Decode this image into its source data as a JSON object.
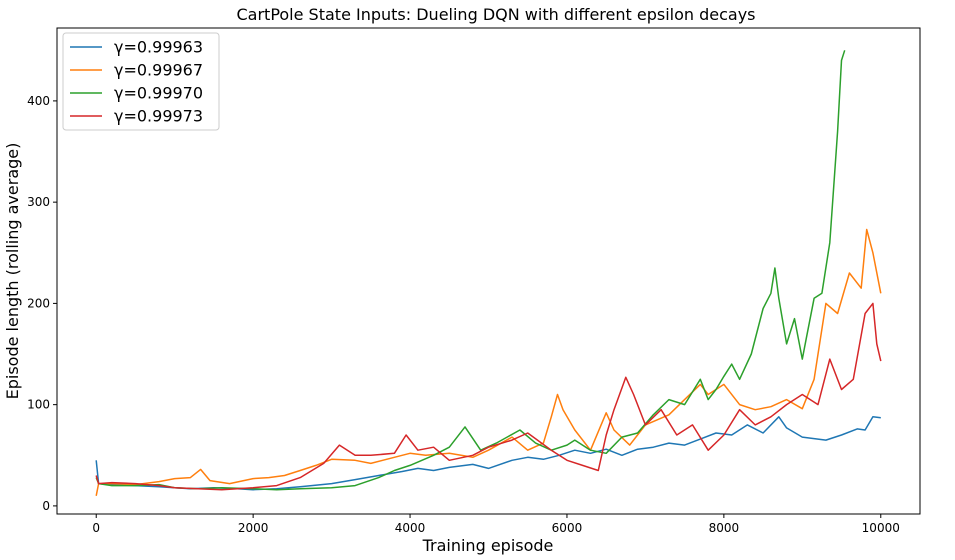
{
  "chart_data": {
    "type": "line",
    "title": "CartPole State Inputs: Dueling DQN with different epsilon decays",
    "xlabel": "Training episode",
    "ylabel": "Episode length (rolling average)",
    "xlim": [
      -500,
      10500
    ],
    "ylim": [
      -8,
      472
    ],
    "xticks": [
      0,
      2000,
      4000,
      6000,
      8000,
      10000
    ],
    "xtick_labels": [
      "0",
      "2000",
      "4000",
      "6000",
      "8000",
      "10000"
    ],
    "yticks": [
      0,
      100,
      200,
      300,
      400
    ],
    "ytick_labels": [
      "0",
      "100",
      "200",
      "300",
      "400"
    ],
    "grid": false,
    "legend_position": "top-left",
    "series": [
      {
        "name": "γ=0.99963",
        "color": "#1f77b4",
        "x": [
          0,
          30,
          200,
          500,
          800,
          1000,
          1200,
          1500,
          1800,
          2000,
          2300,
          2600,
          3000,
          3300,
          3600,
          3900,
          4100,
          4300,
          4500,
          4800,
          5000,
          5300,
          5500,
          5700,
          5900,
          6100,
          6300,
          6500,
          6700,
          6900,
          7100,
          7300,
          7500,
          7700,
          7900,
          8100,
          8300,
          8500,
          8700,
          8800,
          9000,
          9200,
          9300,
          9500,
          9700,
          9800,
          9900,
          10000
        ],
        "y": [
          45,
          22,
          21,
          20,
          19,
          18,
          17,
          18,
          17,
          16,
          17,
          19,
          22,
          26,
          30,
          34,
          37,
          35,
          38,
          41,
          37,
          45,
          48,
          46,
          50,
          55,
          52,
          56,
          50,
          56,
          58,
          62,
          60,
          66,
          72,
          70,
          80,
          72,
          88,
          77,
          68,
          66,
          65,
          70,
          76,
          75,
          88,
          87
        ]
      },
      {
        "name": "γ=0.99967",
        "color": "#ff7f0e",
        "x": [
          0,
          30,
          200,
          500,
          800,
          1000,
          1200,
          1330,
          1450,
          1700,
          2000,
          2200,
          2400,
          2600,
          2800,
          3000,
          3300,
          3500,
          3800,
          4000,
          4200,
          4500,
          4800,
          5000,
          5300,
          5500,
          5700,
          5800,
          5880,
          5950,
          6100,
          6300,
          6500,
          6600,
          6800,
          7000,
          7300,
          7500,
          7700,
          7800,
          8000,
          8200,
          8400,
          8600,
          8800,
          9000,
          9150,
          9300,
          9450,
          9600,
          9750,
          9820,
          9900,
          10000
        ],
        "y": [
          10,
          22,
          22,
          21,
          24,
          27,
          28,
          36,
          25,
          22,
          27,
          28,
          30,
          35,
          40,
          46,
          45,
          42,
          48,
          52,
          50,
          52,
          48,
          55,
          68,
          55,
          62,
          88,
          110,
          95,
          75,
          55,
          92,
          75,
          60,
          80,
          90,
          105,
          120,
          110,
          120,
          100,
          95,
          98,
          105,
          96,
          125,
          200,
          190,
          230,
          215,
          273,
          250,
          210
        ]
      },
      {
        "name": "γ=0.99970",
        "color": "#2ca02c",
        "x": [
          0,
          30,
          200,
          500,
          800,
          1000,
          1300,
          1600,
          2000,
          2300,
          2600,
          3000,
          3300,
          3600,
          3800,
          4000,
          4300,
          4500,
          4700,
          4900,
          5100,
          5400,
          5600,
          5800,
          6000,
          6100,
          6300,
          6500,
          6700,
          6900,
          7100,
          7300,
          7500,
          7700,
          7800,
          7900,
          8000,
          8100,
          8200,
          8350,
          8500,
          8600,
          8650,
          8700,
          8800,
          8900,
          9000,
          9050,
          9150,
          9250,
          9350,
          9450,
          9500,
          9540
        ],
        "y": [
          28,
          22,
          20,
          20,
          21,
          18,
          17,
          18,
          17,
          16,
          17,
          18,
          20,
          28,
          35,
          40,
          50,
          58,
          78,
          55,
          62,
          75,
          62,
          55,
          60,
          65,
          55,
          52,
          68,
          72,
          90,
          105,
          100,
          125,
          105,
          115,
          128,
          140,
          125,
          150,
          195,
          210,
          235,
          205,
          160,
          185,
          145,
          165,
          205,
          210,
          260,
          370,
          440,
          450
        ]
      },
      {
        "name": "γ=0.99973",
        "color": "#d62728",
        "x": [
          0,
          30,
          200,
          500,
          800,
          1000,
          1300,
          1600,
          2000,
          2300,
          2600,
          2900,
          3100,
          3300,
          3500,
          3800,
          3950,
          4100,
          4300,
          4500,
          4800,
          5000,
          5300,
          5500,
          5800,
          6000,
          6200,
          6400,
          6500,
          6600,
          6750,
          6850,
          7000,
          7200,
          7400,
          7600,
          7800,
          8000,
          8200,
          8400,
          8600,
          8800,
          9000,
          9200,
          9350,
          9500,
          9650,
          9800,
          9900,
          9950,
          10000
        ],
        "y": [
          30,
          22,
          23,
          22,
          20,
          18,
          17,
          16,
          18,
          20,
          28,
          42,
          60,
          50,
          50,
          52,
          70,
          55,
          58,
          45,
          50,
          58,
          65,
          72,
          55,
          45,
          40,
          35,
          70,
          95,
          127,
          110,
          80,
          95,
          70,
          80,
          55,
          70,
          95,
          80,
          88,
          100,
          110,
          100,
          145,
          115,
          125,
          190,
          200,
          160,
          143
        ]
      }
    ]
  }
}
